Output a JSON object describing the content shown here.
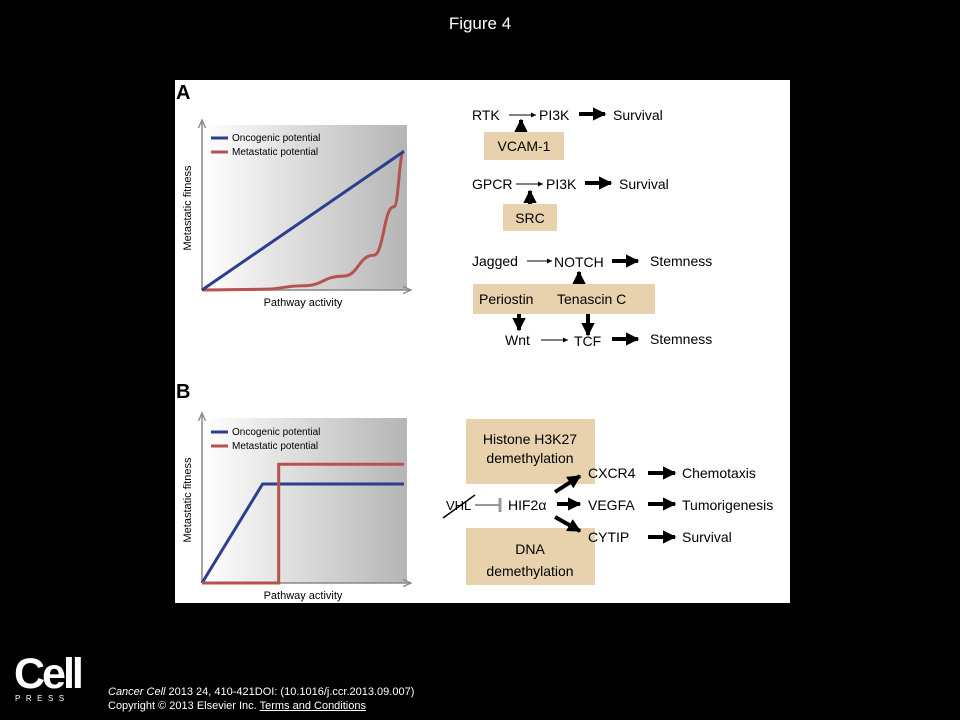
{
  "figure_title": "Figure 4",
  "panel_a": {
    "letter": "A",
    "legend": [
      "Oncogenic potential",
      "Metastatic potential"
    ],
    "ylabel": "Metastatic fitness",
    "xlabel": "Pathway activity",
    "pathways": {
      "rtk": "RTK",
      "pi3k_1": "PI3K",
      "survival_1": "Survival",
      "vcam1": "VCAM-1",
      "gpcr": "GPCR",
      "pi3k_2": "PI3K",
      "survival_2": "Survival",
      "src": "SRC",
      "jagged": "Jagged",
      "notch": "NOTCH",
      "stemness_1": "Stemness",
      "periostin": "Periostin",
      "tenascin": "Tenascin C",
      "wnt": "Wnt",
      "tcf": "TCF",
      "stemness_2": "Stemness"
    }
  },
  "panel_b": {
    "letter": "B",
    "legend": [
      "Oncogenic potential",
      "Metastatic potential"
    ],
    "ylabel": "Metastatic fitness",
    "xlabel": "Pathway activity",
    "pathways": {
      "histone_line1": "Histone H3K27",
      "histone_line2": "demethylation",
      "vhl": "VHL",
      "hif2a": "HIF2α",
      "cxcr4": "CXCR4",
      "chemotaxis": "Chemotaxis",
      "vegfa": "VEGFA",
      "tumorigenesis": "Tumorigenesis",
      "cytip": "CYTIP",
      "survival": "Survival",
      "dna_line1": "DNA",
      "dna_line2": "demethylation"
    }
  },
  "colors": {
    "oncogenic": "#2b3f8c",
    "metastatic": "#b5534f",
    "box_fill": "#e8d2ae"
  },
  "chart_data": [
    {
      "type": "line",
      "xlabel": "Pathway activity",
      "ylabel": "Metastatic fitness",
      "series": [
        {
          "name": "Oncogenic potential",
          "x": [
            0,
            1
          ],
          "y": [
            0,
            1
          ]
        },
        {
          "name": "Metastatic potential",
          "x": [
            0,
            0.3,
            0.5,
            0.7,
            0.85,
            0.95,
            1
          ],
          "y": [
            0,
            0.005,
            0.03,
            0.1,
            0.25,
            0.6,
            1
          ]
        }
      ]
    },
    {
      "type": "line",
      "xlabel": "Pathway activity",
      "ylabel": "Metastatic fitness",
      "series": [
        {
          "name": "Oncogenic potential",
          "x": [
            0,
            0.3,
            1
          ],
          "y": [
            0,
            0.6,
            0.6
          ]
        },
        {
          "name": "Metastatic potential",
          "x": [
            0,
            0.38,
            0.38,
            1
          ],
          "y": [
            0,
            0,
            0.72,
            0.72
          ]
        }
      ]
    }
  ],
  "footer": {
    "logo_word": "Cell",
    "logo_sub": "PRESS",
    "citation_journal": "Cancer Cell",
    "citation_rest": " 2013 24, 410-421DOI: (10.1016/j.ccr.2013.09.007)",
    "copyright": "Copyright © 2013 Elsevier Inc.",
    "terms_link": "Terms and Conditions"
  }
}
